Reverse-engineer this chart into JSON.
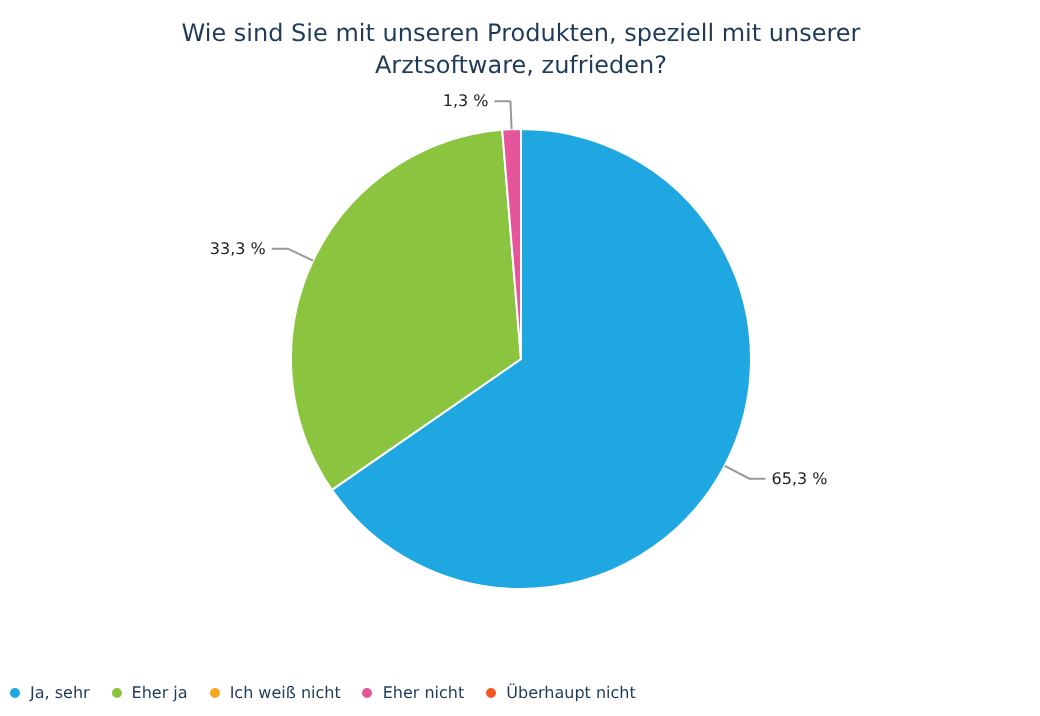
{
  "chart_data": {
    "type": "pie",
    "title": "Wie sind Sie mit unseren Produkten, speziell mit unserer Arztsoftware, zufrieden?",
    "categories": [
      "Ja, sehr",
      "Eher ja",
      "Ich weiß nicht",
      "Eher nicht",
      "Überhaupt nicht"
    ],
    "values": [
      65.3,
      33.3,
      0,
      1.3,
      0
    ],
    "colors": [
      "#1ea7e1",
      "#8bc53f",
      "#f5a623",
      "#e5559b",
      "#f05a28"
    ],
    "value_labels": [
      "65,3 %",
      "33,3 %",
      null,
      "1,3 %",
      null
    ],
    "legend": "bottom left"
  }
}
